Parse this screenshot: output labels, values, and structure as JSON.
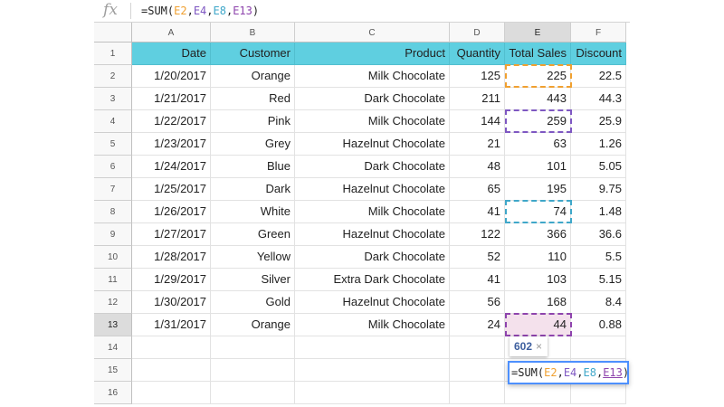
{
  "formula_bar": {
    "icon": "fx",
    "prefix": "=SUM(",
    "refs": [
      "E2",
      "E4",
      "E8",
      "E13"
    ],
    "separator": ",",
    "suffix": ")"
  },
  "colors": {
    "header_fill": "#5fcfe0",
    "ref_e2": "#f0a030",
    "ref_e4": "#7e57c2",
    "ref_e8": "#3fa7c9",
    "ref_e13": "#8e44ad",
    "ref_e13_fill": "#f4e1ec",
    "editor_border": "#4d90fe",
    "tooltip_value": "#3d5f9e"
  },
  "columns": [
    "A",
    "B",
    "C",
    "D",
    "E",
    "F"
  ],
  "row_numbers": [
    "1",
    "2",
    "3",
    "4",
    "5",
    "6",
    "7",
    "8",
    "9",
    "10",
    "11",
    "12",
    "13",
    "14",
    "15",
    "16"
  ],
  "headers": [
    "Date",
    "Customer",
    "Product",
    "Quantity",
    "Total Sales",
    "Discount"
  ],
  "rows": [
    [
      "1/20/2017",
      "Orange",
      "Milk Chocolate",
      "125",
      "225",
      "22.5"
    ],
    [
      "1/21/2017",
      "Red",
      "Dark Chocolate",
      "211",
      "443",
      "44.3"
    ],
    [
      "1/22/2017",
      "Pink",
      "Milk Chocolate",
      "144",
      "259",
      "25.9"
    ],
    [
      "1/23/2017",
      "Grey",
      "Hazelnut Chocolate",
      "21",
      "63",
      "1.26"
    ],
    [
      "1/24/2017",
      "Blue",
      "Dark Chocolate",
      "48",
      "101",
      "5.05"
    ],
    [
      "1/25/2017",
      "Dark",
      "Hazelnut Chocolate",
      "65",
      "195",
      "9.75"
    ],
    [
      "1/26/2017",
      "White",
      "Milk Chocolate",
      "41",
      "74",
      "1.48"
    ],
    [
      "1/27/2017",
      "Green",
      "Hazelnut Chocolate",
      "122",
      "366",
      "36.6"
    ],
    [
      "1/28/2017",
      "Yellow",
      "Dark Chocolate",
      "52",
      "110",
      "5.5"
    ],
    [
      "1/29/2017",
      "Silver",
      "Extra Dark Chocolate",
      "41",
      "103",
      "5.15"
    ],
    [
      "1/30/2017",
      "Gold",
      "Hazelnut Chocolate",
      "56",
      "168",
      "8.4"
    ],
    [
      "1/31/2017",
      "Orange",
      "Milk Chocolate",
      "24",
      "44",
      "0.88"
    ]
  ],
  "tooltip": {
    "value": "602",
    "close": "×"
  },
  "editor": {
    "prefix": "=SUM(",
    "refs": [
      "E2",
      "E4",
      "E8",
      "E13"
    ],
    "separator": ",",
    "suffix": ")"
  }
}
